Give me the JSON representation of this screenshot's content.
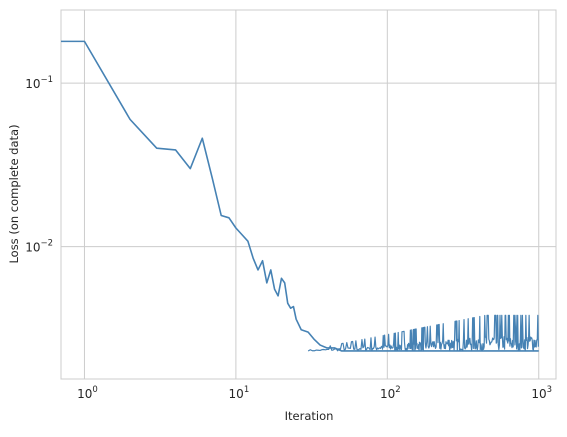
{
  "chart_data": {
    "type": "line",
    "title": "",
    "xlabel": "Iteration",
    "ylabel": "Loss (on complete data)",
    "xscale": "log",
    "yscale": "log",
    "xlim": [
      0.7,
      1300
    ],
    "ylim": [
      0.00155,
      0.28
    ],
    "grid": true,
    "style": "whitegrid",
    "x_ticks": [
      {
        "value": 1,
        "base": "10",
        "exp": "0"
      },
      {
        "value": 10,
        "base": "10",
        "exp": "1"
      },
      {
        "value": 100,
        "base": "10",
        "exp": "2"
      },
      {
        "value": 1000,
        "base": "10",
        "exp": "3"
      }
    ],
    "y_ticks": [
      {
        "value": 0.1,
        "base": "10",
        "exp": "−1"
      },
      {
        "value": 0.01,
        "base": "10",
        "exp": "−2"
      }
    ],
    "series": [
      {
        "color": "#4682b4",
        "x": [
          0,
          1,
          2,
          3,
          4,
          5,
          6,
          7,
          8,
          9,
          10,
          11,
          12,
          13,
          14,
          15,
          16,
          17,
          18,
          19,
          20,
          21,
          22,
          23,
          24,
          25,
          27,
          30,
          33,
          36,
          40,
          45,
          50,
          60,
          70,
          80,
          90,
          100,
          120,
          150,
          200,
          300,
          500,
          1000
        ],
        "y": [
          0.18,
          0.18,
          0.06,
          0.04,
          0.039,
          0.03,
          0.046,
          0.026,
          0.0155,
          0.015,
          0.013,
          0.0118,
          0.0108,
          0.0085,
          0.0072,
          0.0082,
          0.006,
          0.0072,
          0.0055,
          0.005,
          0.0064,
          0.006,
          0.0045,
          0.0042,
          0.0043,
          0.0036,
          0.0031,
          0.003,
          0.0027,
          0.0025,
          0.0024,
          0.0024,
          0.0023,
          0.0023,
          0.0023,
          0.0023,
          0.0023,
          0.0023,
          0.0023,
          0.0023,
          0.0023,
          0.0023,
          0.0023,
          0.0023
        ],
        "noise_floor": 0.0023,
        "noise_peak": 0.0038
      }
    ]
  }
}
